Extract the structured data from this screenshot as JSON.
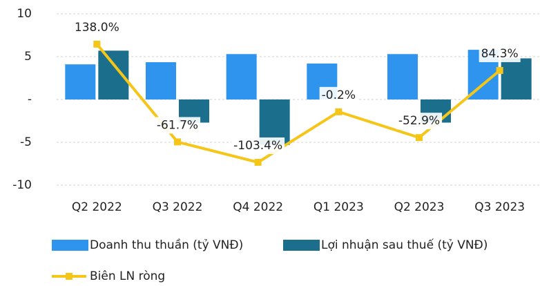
{
  "chart_data": {
    "type": "bar",
    "categories": [
      "Q2 2022",
      "Q3 2022",
      "Q4 2022",
      "Q1 2023",
      "Q2 2023",
      "Q3 2023"
    ],
    "series": [
      {
        "name": "Doanh thu thuần (tỷ VNĐ)",
        "type": "bar",
        "color": "#2e94ee",
        "values": [
          4.1,
          4.35,
          5.3,
          4.2,
          5.3,
          5.8
        ]
      },
      {
        "name": "Lợi nhuận sau thuế (tỷ VNĐ)",
        "type": "bar",
        "color": "#1b6f8c",
        "values": [
          5.7,
          -2.7,
          -5.3,
          0,
          -2.7,
          4.8
        ]
      },
      {
        "name": "Biên LN ròng",
        "type": "line",
        "axis": "y2",
        "color": "#f5c518",
        "values": [
          138.0,
          -61.7,
          -103.4,
          -0.2,
          -52.9,
          84.3
        ],
        "value_labels": [
          "138.0%",
          "-61.7%",
          "-103.4%",
          "-0.2%",
          "-52.9%",
          "84.3%"
        ]
      }
    ],
    "ylim": [
      -10,
      10
    ],
    "yticks": [
      10,
      5,
      {
        "value": 0,
        "label": "-"
      },
      -5,
      -10
    ],
    "y2lim": [
      -150,
      200
    ],
    "grid": true
  }
}
